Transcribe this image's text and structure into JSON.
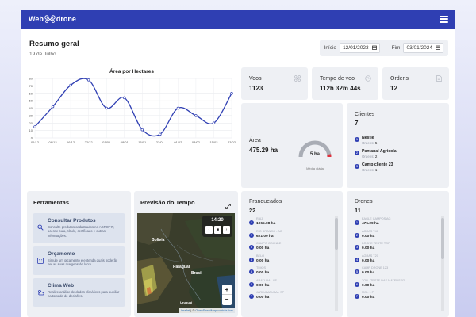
{
  "app": {
    "logo_left": "Web",
    "logo_right": "drone",
    "menu_icon": "hamburger-menu-icon"
  },
  "header": {
    "title": "Resumo geral",
    "date": "19 de Julho"
  },
  "filter": {
    "start_label": "Início",
    "start_value": "12/01/2023",
    "end_label": "Fim",
    "end_value": "03/01/2024",
    "calendar_icon": "calendar-icon"
  },
  "stats": {
    "voos": {
      "label": "Voos",
      "value": "1123",
      "icon": "drone-icon"
    },
    "tempo": {
      "label": "Tempo de voo",
      "value": "112h 32m 44s",
      "icon": "clock-icon"
    },
    "ordens": {
      "label": "Ordens",
      "value": "12",
      "icon": "document-icon"
    }
  },
  "area": {
    "label": "Área",
    "value": "475.29 ha",
    "gauge_value": "5 ha",
    "gauge_caption": "Média diária",
    "gauge_level": 0.92,
    "gauge_color": "#e0313c"
  },
  "clientes": {
    "title": "Clientes",
    "count": "7",
    "items": [
      {
        "rank": "1",
        "name": "Nestle",
        "orders_label": "Ordens:",
        "orders": "5"
      },
      {
        "rank": "2",
        "name": "Pantanal Agricola",
        "orders_label": "Ordens:",
        "orders": "2"
      },
      {
        "rank": "3",
        "name": "Camp cliente 23",
        "orders_label": "Ordens:",
        "orders": "1"
      }
    ]
  },
  "ferramentas": {
    "title": "Ferramentas",
    "items": [
      {
        "title": "Consultar Produtos",
        "desc": "Consulte produtos cadastrados no AGROFIT, acesse bula, rótulo, certificado e outras informações.",
        "icon": "search-icon"
      },
      {
        "title": "Orçamento",
        "desc": "Simule um orçamento e entenda quais poderão ser as suas margens de lucro.",
        "icon": "calculator-icon"
      },
      {
        "title": "Clima Web",
        "desc": "Realize análise de dados climáticos para auxiliar na tomada de decisões.",
        "icon": "weather-icon"
      }
    ]
  },
  "previsao": {
    "title": "Previsão do Tempo",
    "expand_icon": "expand-icon",
    "time": "14:20",
    "labels": [
      "Bolivia",
      "Paraguai",
      "Brasil",
      "Uruguai"
    ],
    "zoom_in": "+",
    "zoom_out": "−",
    "attribution_prefix": "Leaflet",
    "attribution": "OpenStreetMap contributors"
  },
  "franqueados": {
    "title": "Franqueados",
    "count": "22",
    "items": [
      {
        "rank": "1",
        "name": "RAIZ",
        "value": "1065.08 ha"
      },
      {
        "rank": "2",
        "name": "RIO BRANCO - AC",
        "value": "621.09 ha"
      },
      {
        "rank": "3",
        "name": "CAMPO GRANDE",
        "value": "0.00 ha"
      },
      {
        "rank": "4",
        "name": "BELO",
        "value": "0.00 ha"
      },
      {
        "rank": "5",
        "name": "TIMOS",
        "value": "0.00 ha"
      },
      {
        "rank": "6",
        "name": "ARATUBA - CE",
        "value": "0.00 ha"
      },
      {
        "rank": "7",
        "name": "JARI UBATUBA - SP",
        "value": "0.00 ha"
      }
    ]
  },
  "drones": {
    "title": "Drones",
    "count": "11",
    "items": [
      {
        "rank": "1",
        "name": "EAGLE CAMPOS AG",
        "value": "475.29 ha"
      },
      {
        "rank": "2",
        "name": "AGRAS T40",
        "value": "0.00 ha"
      },
      {
        "rank": "3",
        "name": "DRONE TESTE TOP",
        "value": "0.00 ha"
      },
      {
        "rank": "4",
        "name": "AGRAS T20",
        "value": "0.00 ha"
      },
      {
        "rank": "5",
        "name": "CAMP DRONE 123",
        "value": "0.00 ha"
      },
      {
        "rank": "6",
        "name": "TOP - TESTE DAS MATEUS 02",
        "value": "0.00 ha"
      },
      {
        "rank": "7",
        "name": "MG - 1 P",
        "value": "0.00 ha"
      }
    ]
  },
  "chart_data": {
    "type": "line",
    "title": "Área por Hectares",
    "categories": [
      "01/12",
      "08/12",
      "16/12",
      "22/12",
      "01/01",
      "08/01",
      "16/01",
      "23/01",
      "01/02",
      "08/02",
      "15/02",
      "23/02"
    ],
    "values": [
      15,
      42,
      71,
      78,
      40,
      54,
      11,
      5,
      40,
      30,
      20,
      60
    ],
    "ylim": [
      0,
      80
    ],
    "yticks": [
      "0",
      "10",
      "20",
      "30",
      "40",
      "50",
      "60",
      "70",
      "80"
    ],
    "grid": true,
    "color": "#2f3fb3"
  }
}
